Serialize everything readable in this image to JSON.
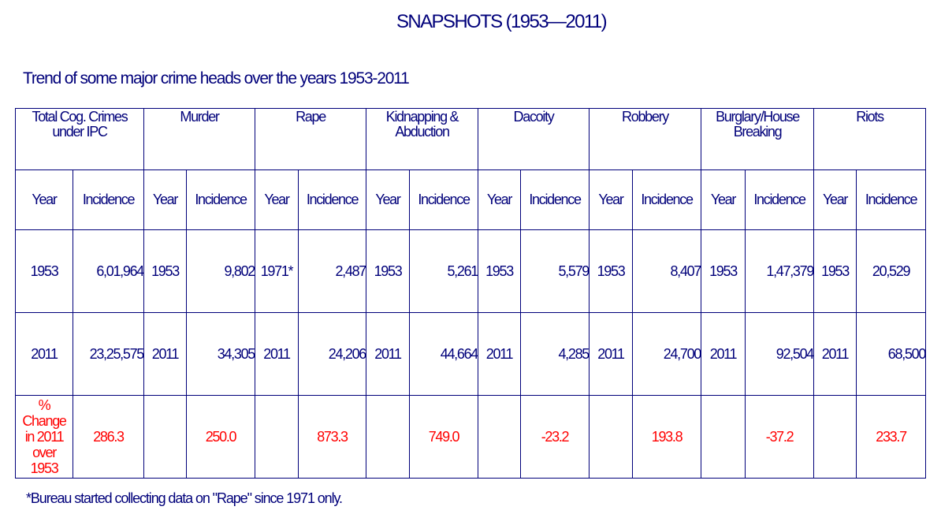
{
  "title": "SNAPSHOTS (1953—2011)",
  "subtitle": "Trend of some major crime heads over the years 1953-2011",
  "table": {
    "heads": [
      "Total Cog. Crimes under IPC",
      "Murder",
      "Rape",
      "Kidnapping & Abduction",
      "Dacoity",
      "Robbery",
      "Burglary/House Breaking",
      "Riots"
    ],
    "year_label": "Year",
    "incidence_label": "Incidence",
    "rows": [
      {
        "cells": [
          {
            "year": "1953",
            "incidence": "6,01,964"
          },
          {
            "year": "1953",
            "incidence": "9,802"
          },
          {
            "year": "1971*",
            "incidence": "2,487"
          },
          {
            "year": "1953",
            "incidence": "5,261"
          },
          {
            "year": "1953",
            "incidence": "5,579"
          },
          {
            "year": "1953",
            "incidence": "8,407"
          },
          {
            "year": "1953",
            "incidence": "1,47,379"
          },
          {
            "year": "1953",
            "incidence": "20,529"
          }
        ]
      },
      {
        "cells": [
          {
            "year": "2011",
            "incidence": "23,25,575"
          },
          {
            "year": "2011",
            "incidence": "34,305"
          },
          {
            "year": "2011",
            "incidence": "24,206"
          },
          {
            "year": "2011",
            "incidence": "44,664"
          },
          {
            "year": "2011",
            "incidence": "4,285"
          },
          {
            "year": "2011",
            "incidence": "24,700"
          },
          {
            "year": "2011",
            "incidence": "92,504"
          },
          {
            "year": "2011",
            "incidence": "68,500"
          }
        ]
      }
    ],
    "change_label_lines": [
      "%",
      "Change",
      "in 2011",
      "over",
      "1953"
    ],
    "change_values": [
      "286.3",
      "250.0",
      "873.3",
      "749.0",
      "-23.2",
      "193.8",
      "-37.2",
      "233.7"
    ]
  },
  "footnote": "*Bureau started collecting data on \"Rape\" since 1971 only.",
  "colors": {
    "text": "#00007a",
    "change_text": "#ff0000",
    "border": "#00007a"
  }
}
